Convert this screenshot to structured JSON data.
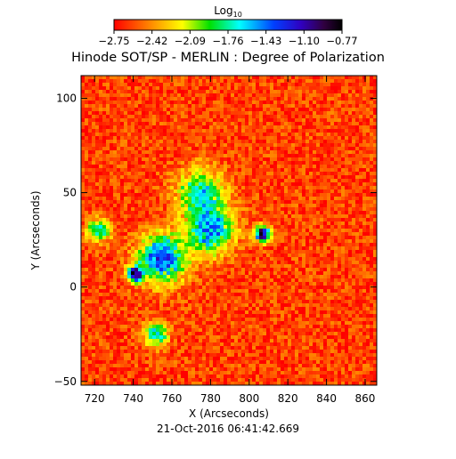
{
  "chart_data": {
    "type": "heatmap",
    "title": "Hinode SOT/SP - MERLIN : Degree of Polarization",
    "colorbar": {
      "label_base": "Log",
      "label_sub": "10",
      "ticks": [
        "−2.75",
        "−2.42",
        "−2.09",
        "−1.76",
        "−1.43",
        "−1.10",
        "−0.77"
      ],
      "range": [
        -2.75,
        -0.77
      ],
      "colormap": "rainbow (red → yellow → green → cyan → blue → purple → black)"
    },
    "xlabel": "X (Arcseconds)",
    "ylabel": "Y (Arcseconds)",
    "xlim": [
      713,
      866
    ],
    "ylim": [
      -52,
      112
    ],
    "xticks": [
      720,
      740,
      760,
      780,
      800,
      820,
      840,
      860
    ],
    "yticks": [
      -50,
      0,
      50,
      100
    ],
    "xtick_labels": [
      "720",
      "740",
      "760",
      "780",
      "800",
      "820",
      "840",
      "860"
    ],
    "ytick_labels": [
      "−50",
      "0",
      "50",
      "100"
    ],
    "background_level": -2.6,
    "features": [
      {
        "kind": "spot",
        "x": 807,
        "y": 28,
        "peak": -0.8
      },
      {
        "kind": "spot",
        "x": 741,
        "y": 7,
        "peak": -0.9
      },
      {
        "kind": "plage",
        "x": 755,
        "y": 15,
        "peak": -1.3
      },
      {
        "kind": "plage",
        "x": 780,
        "y": 30,
        "peak": -1.5
      },
      {
        "kind": "plage",
        "x": 775,
        "y": 50,
        "peak": -1.7
      },
      {
        "kind": "network",
        "x": 752,
        "y": -25,
        "peak": -1.6
      },
      {
        "kind": "network",
        "x": 722,
        "y": 30,
        "peak": -1.7
      }
    ],
    "grid": false
  },
  "timestamp": "21-Oct-2016 06:41:42.669"
}
